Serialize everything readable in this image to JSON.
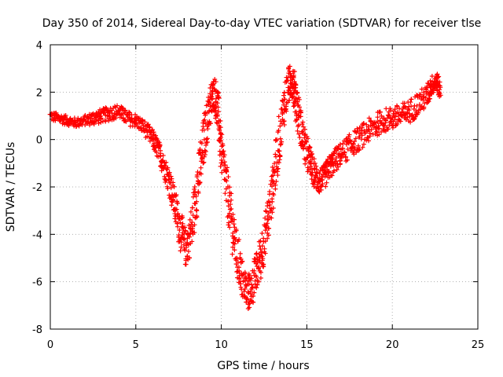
{
  "chart_data": {
    "type": "scatter",
    "title": "Day 350 of 2014, Sidereal Day-to-day VTEC variation (SDTVAR) for receiver tlse",
    "xlabel": "GPS time / hours",
    "ylabel": "SDTVAR / TECUs",
    "xlim": [
      0,
      25
    ],
    "ylim": [
      -8,
      4
    ],
    "xticks": [
      0,
      5,
      10,
      15,
      20,
      25
    ],
    "yticks": [
      -8,
      -6,
      -4,
      -2,
      0,
      2,
      4
    ],
    "grid": true,
    "marker": "+",
    "series": [
      {
        "name": "SDTVAR",
        "color": "#ff0000",
        "x": [
          0.0,
          0.5,
          1.0,
          1.5,
          2.0,
          2.5,
          3.0,
          3.5,
          4.0,
          4.5,
          5.0,
          5.5,
          6.0,
          6.3,
          6.6,
          7.0,
          7.3,
          7.6,
          7.9,
          8.2,
          8.5,
          8.8,
          9.1,
          9.4,
          9.6,
          9.8,
          10.0,
          10.3,
          10.6,
          10.9,
          11.2,
          11.5,
          11.8,
          12.1,
          12.4,
          12.7,
          13.0,
          13.3,
          13.6,
          13.9,
          14.1,
          14.3,
          14.5,
          14.8,
          15.1,
          15.4,
          15.7,
          16.0,
          16.3,
          16.6,
          17.0,
          17.5,
          18.0,
          18.5,
          19.0,
          19.5,
          20.0,
          20.5,
          21.0,
          21.5,
          22.0,
          22.3,
          22.6,
          22.8
        ],
        "y": [
          1.0,
          0.9,
          0.8,
          0.7,
          0.8,
          0.9,
          1.0,
          1.1,
          1.2,
          0.9,
          0.8,
          0.5,
          0.0,
          -0.4,
          -1.0,
          -1.8,
          -2.8,
          -3.8,
          -4.6,
          -4.0,
          -2.5,
          -1.0,
          0.5,
          1.6,
          2.0,
          1.2,
          -0.5,
          -2.0,
          -3.5,
          -4.8,
          -5.8,
          -6.5,
          -6.2,
          -5.5,
          -4.6,
          -3.5,
          -2.0,
          -0.5,
          1.2,
          2.2,
          2.6,
          2.0,
          1.0,
          0.0,
          -0.8,
          -1.4,
          -1.8,
          -1.6,
          -1.2,
          -0.9,
          -0.6,
          -0.3,
          0.0,
          0.3,
          0.6,
          0.8,
          0.9,
          1.0,
          1.2,
          1.5,
          1.8,
          2.3,
          2.5,
          2.0
        ],
        "y_spread": [
          0.2,
          0.2,
          0.2,
          0.2,
          0.2,
          0.3,
          0.3,
          0.3,
          0.3,
          0.3,
          0.3,
          0.3,
          0.4,
          0.4,
          0.5,
          0.6,
          0.7,
          0.8,
          0.8,
          0.9,
          1.0,
          1.1,
          1.0,
          0.8,
          0.7,
          0.9,
          1.0,
          1.0,
          1.0,
          1.0,
          0.9,
          0.8,
          0.8,
          0.9,
          1.0,
          1.0,
          1.0,
          1.0,
          0.9,
          0.8,
          0.7,
          0.8,
          0.9,
          0.8,
          0.7,
          0.6,
          0.5,
          0.5,
          0.5,
          0.5,
          0.5,
          0.5,
          0.5,
          0.5,
          0.5,
          0.5,
          0.5,
          0.5,
          0.5,
          0.5,
          0.5,
          0.4,
          0.4,
          0.4
        ]
      }
    ]
  }
}
